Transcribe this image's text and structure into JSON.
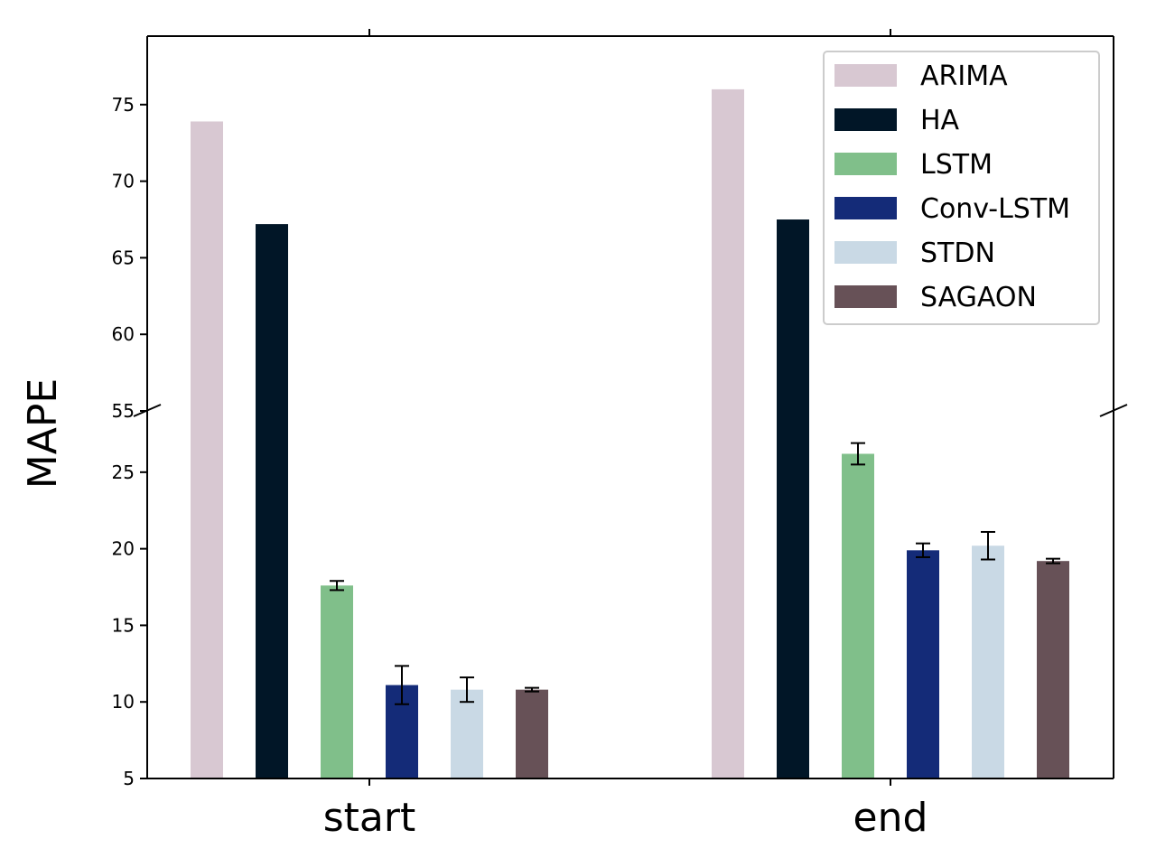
{
  "chart_data": {
    "type": "bar",
    "broken_axis": true,
    "ylabel": "MAPE",
    "xlabel": "",
    "categories": [
      "start",
      "end"
    ],
    "ylim_lower": [
      5,
      29
    ],
    "ylim_upper": [
      55,
      79
    ],
    "yticks_lower": [
      5,
      10,
      15,
      20,
      25
    ],
    "yticks_upper": [
      55,
      60,
      65,
      70,
      75
    ],
    "legend_position": "top-right",
    "grid": false,
    "series": [
      {
        "name": "ARIMA",
        "color": "#d8c8d2",
        "values": [
          73.9,
          76.0
        ],
        "errors": [
          0,
          0
        ]
      },
      {
        "name": "HA",
        "color": "#011627",
        "values": [
          67.2,
          67.5
        ],
        "errors": [
          0,
          0
        ]
      },
      {
        "name": "LSTM",
        "color": "#80bf8a",
        "values": [
          17.6,
          26.2
        ],
        "errors": [
          0.3,
          0.7
        ]
      },
      {
        "name": "Conv-LSTM",
        "color": "#142b78",
        "values": [
          11.1,
          19.9
        ],
        "errors": [
          1.25,
          0.45
        ]
      },
      {
        "name": "STDN",
        "color": "#c9d9e5",
        "values": [
          10.8,
          20.2
        ],
        "errors": [
          0.8,
          0.9
        ]
      },
      {
        "name": "SAGAON",
        "color": "#675157",
        "values": [
          10.8,
          19.2
        ],
        "errors": [
          0.12,
          0.15
        ]
      }
    ]
  }
}
